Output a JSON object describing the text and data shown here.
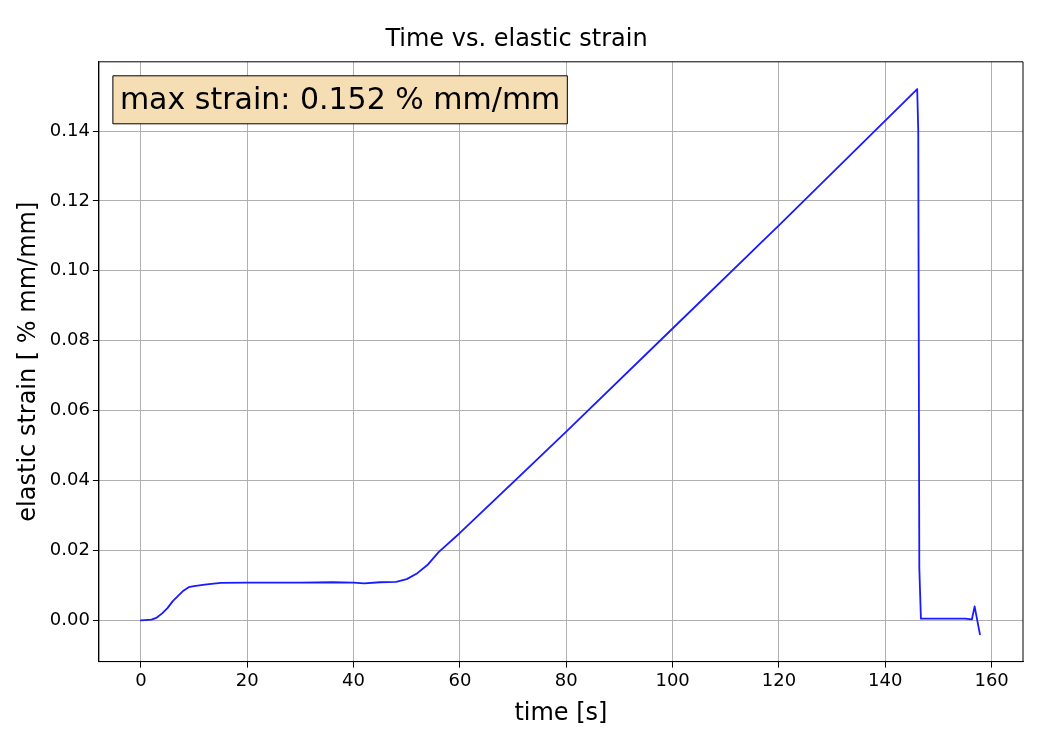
{
  "chart_data": {
    "type": "line",
    "title": "Time vs. elastic strain",
    "xlabel": "time [s]",
    "ylabel": "elastic strain [ % mm/mm]",
    "annotations": [
      "max strain: 0.152 % mm/mm"
    ],
    "series": [
      {
        "color": "#1a1aff",
        "x": [
          0,
          2,
          3,
          4,
          5,
          6,
          7,
          8,
          9,
          10,
          12,
          15,
          20,
          30,
          36,
          40,
          42,
          45,
          48,
          50,
          52,
          54,
          56,
          60,
          80,
          100,
          120,
          140,
          146,
          146.2,
          146.4,
          146.7,
          150,
          155,
          156.3,
          156.8,
          157.3,
          157.8
        ],
        "values": [
          0,
          0.0002,
          0.0008,
          0.002,
          0.0035,
          0.0055,
          0.007,
          0.0085,
          0.0095,
          0.0098,
          0.0102,
          0.0107,
          0.0108,
          0.0108,
          0.0109,
          0.0108,
          0.0106,
          0.0109,
          0.011,
          0.0118,
          0.0135,
          0.016,
          0.0195,
          0.025,
          0.054,
          0.0835,
          0.113,
          0.143,
          0.152,
          0.14,
          0.015,
          0.0005,
          0.0005,
          0.0005,
          0.0003,
          0.004,
          0,
          -0.004
        ]
      }
    ],
    "xlim": [
      -7.9,
      165.9
    ],
    "xticks": [
      0,
      20,
      40,
      60,
      80,
      100,
      120,
      140,
      160
    ],
    "ylim": [
      -0.0118,
      0.1598
    ],
    "yticks": [
      {
        "value": 0,
        "label": "0.00"
      },
      {
        "value": 0.02,
        "label": "0.02"
      },
      {
        "value": 0.04,
        "label": "0.04"
      },
      {
        "value": 0.06,
        "label": "0.06"
      },
      {
        "value": 0.08,
        "label": "0.08"
      },
      {
        "value": 0.1,
        "label": "0.10"
      },
      {
        "value": 0.12,
        "label": "0.12"
      },
      {
        "value": 0.14,
        "label": "0.14"
      }
    ],
    "grid": true,
    "marker": "none",
    "line_style": "solid"
  }
}
